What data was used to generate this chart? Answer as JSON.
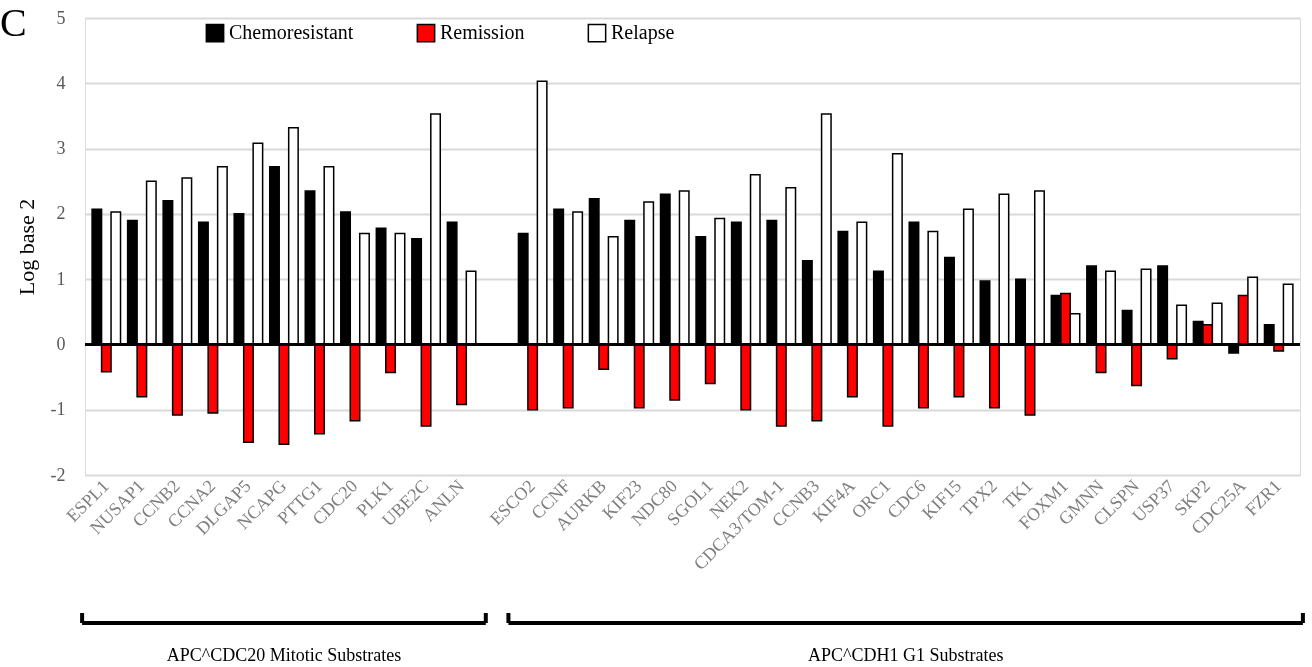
{
  "chart_data": {
    "type": "bar",
    "ylabel": "Log base 2",
    "categories": [
      "ESPL1",
      "NUSAP1",
      "CCNB2",
      "CCNA2",
      "DLGAP5",
      "NCAPG",
      "PTTG1",
      "CDC20",
      "PLK1",
      "UBE2C",
      "ANLN",
      null,
      "ESCO2",
      "CCNF",
      "AURKB",
      "KIF23",
      "NDC80",
      "SGOL1",
      "NEK2",
      "CDCA3/TOM-1",
      "CCNB3",
      "KIF4A",
      "ORC1",
      "CDC6",
      "KIF15",
      "TPX2",
      "TK1",
      "FOXM1",
      "GMNN",
      "CLSPN",
      "USP37",
      "SKP2",
      "CDC25A",
      "FZR1"
    ],
    "series": [
      {
        "name": "Chemoresistant",
        "color": "#000000",
        "values": [
          2.07,
          1.9,
          2.2,
          1.87,
          2.0,
          2.72,
          2.35,
          2.03,
          1.78,
          1.62,
          1.87,
          null,
          1.7,
          2.07,
          2.23,
          1.9,
          2.3,
          1.65,
          1.87,
          1.9,
          1.28,
          1.73,
          1.12,
          1.87,
          1.33,
          0.97,
          1.0,
          0.75,
          1.2,
          0.52,
          1.2,
          0.35,
          -0.13,
          0.3
        ]
      },
      {
        "name": "Remission",
        "color": "#ff0000",
        "values": [
          -0.42,
          -0.8,
          -1.08,
          -1.05,
          -1.5,
          -1.53,
          -1.37,
          -1.17,
          -0.43,
          -1.25,
          -0.92,
          null,
          -1.0,
          -0.97,
          -0.38,
          -0.97,
          -0.85,
          -0.6,
          -1.0,
          -1.25,
          -1.17,
          -0.8,
          -1.25,
          -0.97,
          -0.8,
          -0.97,
          -1.08,
          0.78,
          -0.43,
          -0.63,
          -0.22,
          0.3,
          0.75,
          -0.1
        ]
      },
      {
        "name": "Relapse",
        "color": "#ffffff",
        "values": [
          2.03,
          2.5,
          2.55,
          2.72,
          3.08,
          3.32,
          2.72,
          1.7,
          1.7,
          3.53,
          1.12,
          null,
          4.03,
          2.03,
          1.65,
          2.18,
          2.35,
          1.93,
          2.6,
          2.4,
          3.53,
          1.87,
          2.92,
          1.73,
          2.07,
          2.3,
          2.35,
          0.47,
          1.12,
          1.15,
          0.6,
          0.63,
          1.03,
          0.92
        ]
      }
    ],
    "ylim": [
      -2,
      5
    ],
    "yticks": [
      -2,
      -1,
      0,
      1,
      2,
      3,
      4,
      5
    ],
    "grid": "y",
    "legend": "top left",
    "ref_lines": [
      {
        "axis": "y",
        "value": 0,
        "label": null,
        "color": "#000000"
      }
    ],
    "annotations": [
      "C",
      "APC^CDC20 Mitotic Substrates",
      "APC^CDH1 G1 Substrates"
    ]
  }
}
